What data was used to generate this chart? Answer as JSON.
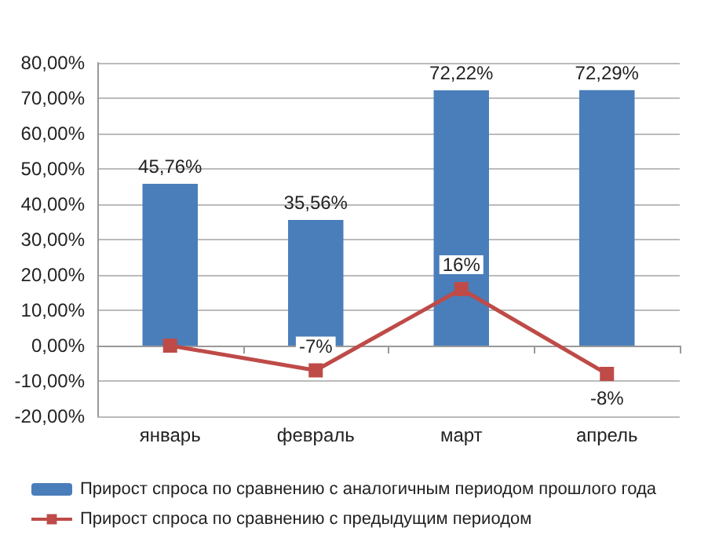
{
  "chart_data": {
    "type": "bar",
    "categories": [
      "январь",
      "февраль",
      "март",
      "апрель"
    ],
    "series": [
      {
        "name": "Прирост спроса по сравнению с аналогичным периодом прошлого года",
        "color": "#4a7ebb",
        "values": [
          45.76,
          35.56,
          72.22,
          72.29
        ],
        "value_labels": [
          "45,76%",
          "35,56%",
          "72,22%",
          "72,29%"
        ]
      },
      {
        "name": "Прирост спроса по сравнению с предыдущим периодом",
        "type": "line",
        "color": "#be4b48",
        "values": [
          0,
          -7,
          16,
          -8
        ],
        "value_labels": [
          null,
          "-7%",
          "16%",
          "-8%"
        ],
        "marker": "square"
      }
    ],
    "ylim": [
      -20,
      80
    ],
    "yticks": [
      {
        "value": -20,
        "label": "-20,00%"
      },
      {
        "value": -10,
        "label": "-10,00%"
      },
      {
        "value": 0,
        "label": "0,00%"
      },
      {
        "value": 10,
        "label": "10,00%"
      },
      {
        "value": 20,
        "label": "20,00%"
      },
      {
        "value": 30,
        "label": "30,00%"
      },
      {
        "value": 40,
        "label": "40,00%"
      },
      {
        "value": 50,
        "label": "50,00%"
      },
      {
        "value": 60,
        "label": "60,00%"
      },
      {
        "value": 70,
        "label": "70,00%"
      },
      {
        "value": 80,
        "label": "80,00%"
      }
    ],
    "grid": "y",
    "legend": "bottom"
  }
}
